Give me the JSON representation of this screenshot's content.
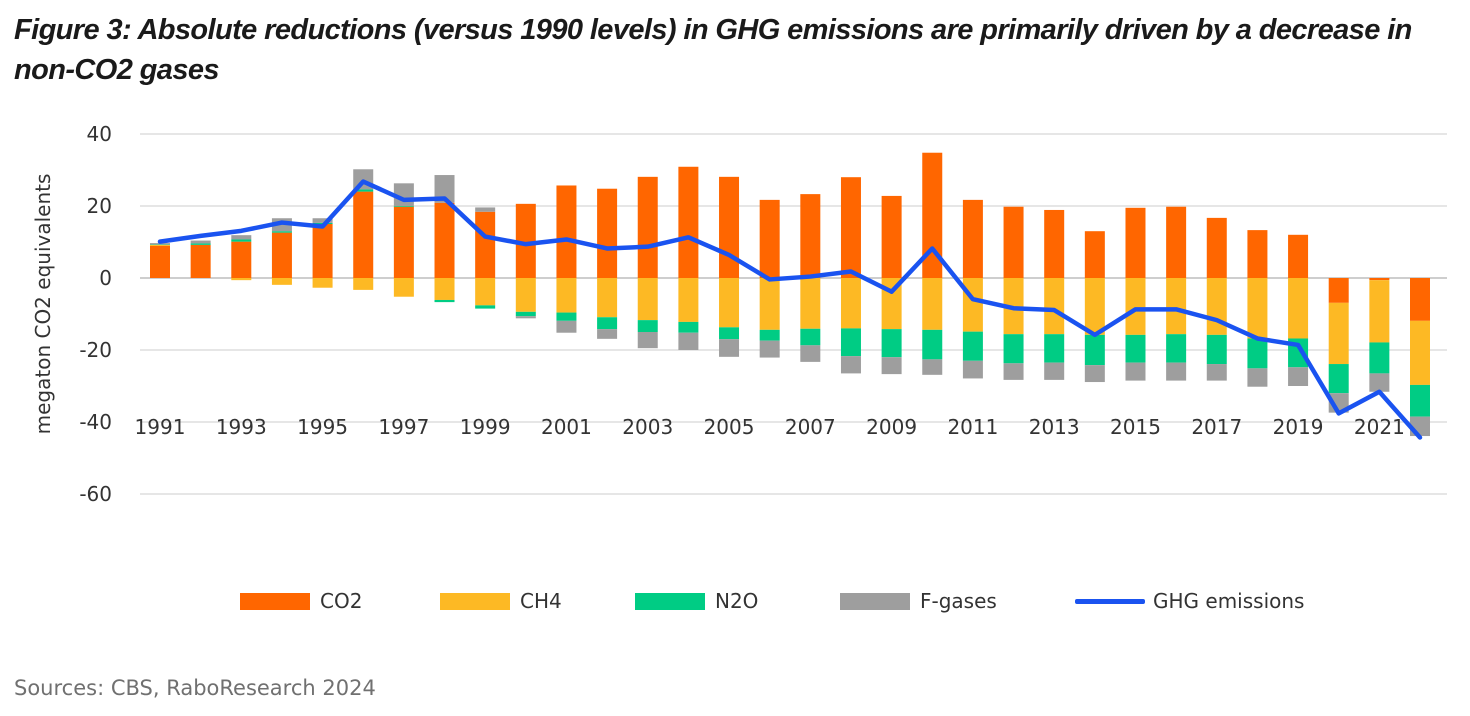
{
  "title": "Figure 3: Absolute reductions (versus 1990 levels) in GHG emissions are primarily driven by a decrease in non-CO2 gases",
  "source": "Sources: CBS, RaboResearch 2024",
  "chart_data": {
    "type": "bar",
    "stacked": true,
    "title": "Figure 3: Absolute reductions (versus 1990 levels) in GHG emissions are primarily driven by a decrease in non-CO2 gases",
    "xlabel": "",
    "ylabel": "megaton CO2 equivalents",
    "ylim": [
      -60,
      40
    ],
    "yticks": [
      40,
      20,
      0,
      -20,
      -40,
      -60
    ],
    "grid": true,
    "legend_position": "bottom",
    "categories": [
      "1991",
      "1992",
      "1993",
      "1994",
      "1995",
      "1996",
      "1997",
      "1998",
      "1999",
      "2000",
      "2001",
      "2002",
      "2003",
      "2004",
      "2005",
      "2006",
      "2007",
      "2008",
      "2009",
      "2010",
      "2011",
      "2012",
      "2013",
      "2014",
      "2015",
      "2016",
      "2017",
      "2018",
      "2019",
      "2020",
      "2021",
      "2022"
    ],
    "xtick_labels": [
      "1991",
      "1993",
      "1995",
      "1997",
      "1999",
      "2001",
      "2003",
      "2005",
      "2007",
      "2009",
      "2011",
      "2013",
      "2015",
      "2017",
      "2019",
      "2021"
    ],
    "series": [
      {
        "name": "CO2",
        "color": "#FF6600",
        "values": [
          8.9,
          9.2,
          10.1,
          12.6,
          15.0,
          24.0,
          19.8,
          20.9,
          18.4,
          20.6,
          25.7,
          24.8,
          28.1,
          30.9,
          28.1,
          21.7,
          23.3,
          28.0,
          22.8,
          34.8,
          21.7,
          19.8,
          18.9,
          13.0,
          19.5,
          19.8,
          16.7,
          13.3,
          12.0,
          -6.9,
          -0.6,
          -11.9
        ]
      },
      {
        "name": "CH4",
        "color": "#FDB924",
        "values": [
          0.3,
          0,
          -0.6,
          -1.9,
          -2.7,
          -3.3,
          -5.2,
          -6.1,
          -7.6,
          -9.4,
          -9.6,
          -10.9,
          -11.7,
          -12.2,
          -13.7,
          -14.4,
          -14.1,
          -14.0,
          -14.2,
          -14.4,
          -14.9,
          -15.6,
          -15.6,
          -15.8,
          -15.8,
          -15.6,
          -15.8,
          -16.8,
          -16.8,
          -17.0,
          -17.3,
          -17.8
        ]
      },
      {
        "name": "N2O",
        "color": "#00CC84",
        "values": [
          0.1,
          0.4,
          0.6,
          0.4,
          0.3,
          0.6,
          0.2,
          -0.6,
          -0.9,
          -1.2,
          -2.3,
          -3.3,
          -3.3,
          -3.0,
          -3.3,
          -3.0,
          -4.6,
          -7.7,
          -7.8,
          -8.2,
          -8.1,
          -8.1,
          -7.9,
          -8.4,
          -7.7,
          -7.9,
          -8.1,
          -8.3,
          -8.0,
          -8.1,
          -8.6,
          -8.8
        ]
      },
      {
        "name": "F-gases",
        "color": "#9E9E9E",
        "values": [
          0.4,
          0.8,
          1.2,
          3.6,
          1.3,
          5.6,
          6.3,
          7.7,
          1.2,
          -0.6,
          -3.3,
          -2.7,
          -4.5,
          -4.8,
          -4.9,
          -4.7,
          -4.6,
          -4.8,
          -4.7,
          -4.3,
          -4.9,
          -4.6,
          -4.8,
          -4.7,
          -5.0,
          -5.0,
          -4.6,
          -5.1,
          -5.2,
          -5.4,
          -5.1,
          -5.4
        ]
      }
    ],
    "line_series": {
      "name": "GHG emissions",
      "color": "#1A53F0",
      "values": [
        10.1,
        11.7,
        13.1,
        15.4,
        14.3,
        26.8,
        21.7,
        22.1,
        11.5,
        9.4,
        10.7,
        8.2,
        8.7,
        11.3,
        6.4,
        -0.4,
        0.4,
        1.8,
        -3.8,
        8.2,
        -5.9,
        -8.4,
        -8.9,
        -15.8,
        -8.7,
        -8.7,
        -11.7,
        -16.8,
        -18.6,
        -37.6,
        -31.6,
        -44.3
      ]
    }
  },
  "legend": [
    {
      "label": "CO2",
      "type": "bar",
      "color": "#FF6600"
    },
    {
      "label": "CH4",
      "type": "bar",
      "color": "#FDB924"
    },
    {
      "label": "N2O",
      "type": "bar",
      "color": "#00CC84"
    },
    {
      "label": "F-gases",
      "type": "bar",
      "color": "#9E9E9E"
    },
    {
      "label": "GHG emissions",
      "type": "line",
      "color": "#1A53F0"
    }
  ]
}
